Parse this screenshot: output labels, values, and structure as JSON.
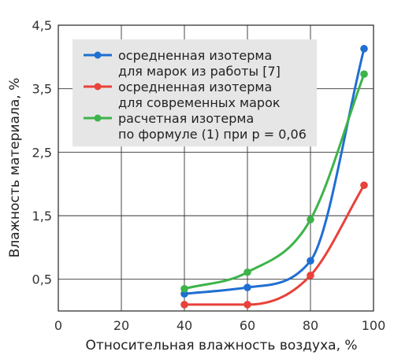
{
  "chart_data": {
    "type": "line",
    "title": "",
    "xlabel": "Относительная влажность воздуха, %",
    "ylabel": "Влажность материала, %",
    "xlim": [
      0,
      100
    ],
    "ylim": [
      0,
      4.5
    ],
    "xticks": [
      0,
      20,
      40,
      60,
      80,
      100
    ],
    "yticks": [
      0.5,
      1.5,
      2.5,
      3.5,
      4.5
    ],
    "x_tick_labels": [
      "0",
      "20",
      "40",
      "60",
      "80",
      "100"
    ],
    "y_tick_labels": [
      "0,5",
      "1,5",
      "2,5",
      "3,5",
      "4,5"
    ],
    "grid": true,
    "legend_position": "top-right",
    "series": [
      {
        "name_lines": [
          "осредненная изотерма",
          "для марок из работы [7]"
        ],
        "color": "#1f6fd1",
        "points": [
          [
            40,
            0.27
          ],
          [
            60,
            0.37
          ],
          [
            80,
            0.79
          ],
          [
            97,
            4.13
          ]
        ]
      },
      {
        "name_lines": [
          "осредненная изотерма",
          "для современных марок"
        ],
        "color": "#e8423a",
        "points": [
          [
            40,
            0.1
          ],
          [
            60,
            0.1
          ],
          [
            80,
            0.56
          ],
          [
            97,
            1.98
          ]
        ]
      },
      {
        "name_lines": [
          "расчетная изотерма",
          "по формуле (1) при p = 0,06"
        ],
        "color": "#3db34a",
        "points": [
          [
            40,
            0.35
          ],
          [
            60,
            0.61
          ],
          [
            80,
            1.44
          ],
          [
            97,
            3.73
          ]
        ]
      }
    ]
  }
}
